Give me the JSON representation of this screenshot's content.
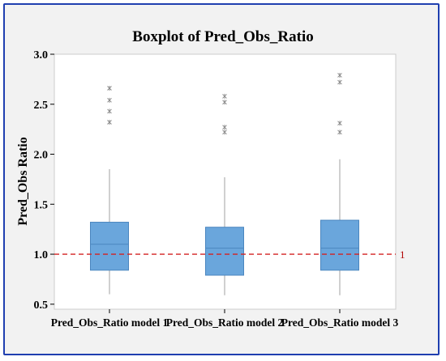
{
  "chart_data": {
    "type": "boxplot",
    "title": "Boxplot of Pred_Obs_Ratio",
    "ylabel": "Pred_Obs Ratio",
    "xlabel": "",
    "ylim": [
      0.45,
      3.0
    ],
    "yticks": [
      0.5,
      1.0,
      1.5,
      2.0,
      2.5,
      3.0
    ],
    "ytick_labels": [
      "0.5",
      "1.0",
      "1.5",
      "2.0",
      "2.5",
      "3.0"
    ],
    "categories": [
      "Pred_Obs_Ratio model 1",
      "Pred_Obs_Ratio model 2",
      "Pred_Obs_Ratio model 3"
    ],
    "boxes": [
      {
        "whisker_low": 0.6,
        "q1": 0.84,
        "median": 1.1,
        "q3": 1.32,
        "whisker_high": 1.85,
        "outliers": [
          2.32,
          2.43,
          2.54,
          2.66
        ]
      },
      {
        "whisker_low": 0.59,
        "q1": 0.79,
        "median": 1.06,
        "q3": 1.27,
        "whisker_high": 1.77,
        "outliers": [
          2.22,
          2.27,
          2.52,
          2.58
        ]
      },
      {
        "whisker_low": 0.59,
        "q1": 0.84,
        "median": 1.06,
        "q3": 1.34,
        "whisker_high": 1.95,
        "outliers": [
          2.22,
          2.31,
          2.72,
          2.79
        ]
      }
    ],
    "reference_line": {
      "value": 1.0,
      "label": "1",
      "color": "#d42020",
      "style": "dashed"
    },
    "box_color": "#6aa6dc",
    "box_edge_color": "#4b86bf",
    "whisker_color": "#a0a0a0",
    "outlier_marker": "x",
    "grid": false
  }
}
